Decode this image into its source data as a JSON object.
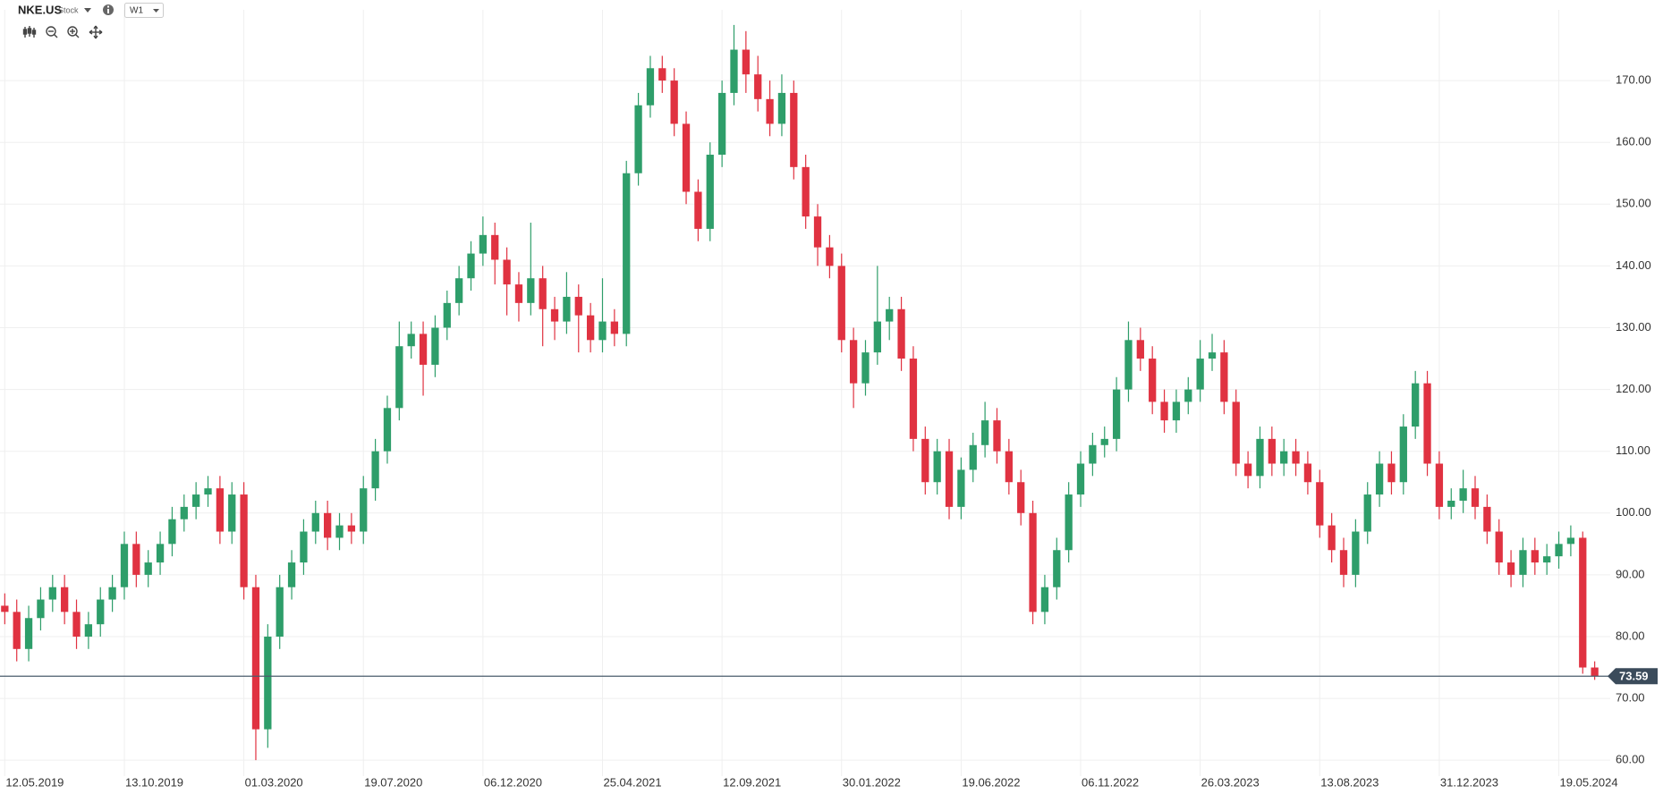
{
  "header": {
    "symbol": "NKE.US",
    "kind": "Stock",
    "interval": "W1"
  },
  "chart_data": {
    "type": "candlestick",
    "up_color": "#2e9e6a",
    "down_color": "#e03241",
    "grid": true,
    "xlim": [
      0.6,
      135.3
    ],
    "ylim": [
      58,
      180
    ],
    "xticks": [
      {
        "value": 1,
        "label": "12.05.2019"
      },
      {
        "value": 11,
        "label": "13.10.2019"
      },
      {
        "value": 21,
        "label": "01.03.2020"
      },
      {
        "value": 31,
        "label": "19.07.2020"
      },
      {
        "value": 41,
        "label": "06.12.2020"
      },
      {
        "value": 51,
        "label": "25.04.2021"
      },
      {
        "value": 61,
        "label": "12.09.2021"
      },
      {
        "value": 71,
        "label": "30.01.2022"
      },
      {
        "value": 81,
        "label": "19.06.2022"
      },
      {
        "value": 91,
        "label": "06.11.2022"
      },
      {
        "value": 101,
        "label": "26.03.2023"
      },
      {
        "value": 111,
        "label": "13.08.2023"
      },
      {
        "value": 121,
        "label": "31.12.2023"
      },
      {
        "value": 131,
        "label": "19.05.2024"
      }
    ],
    "yticks": [
      {
        "value": 60,
        "label": "60.00"
      },
      {
        "value": 70,
        "label": "70.00"
      },
      {
        "value": 80,
        "label": "80.00"
      },
      {
        "value": 90,
        "label": "90.00"
      },
      {
        "value": 100,
        "label": "100.00"
      },
      {
        "value": 110,
        "label": "110.00"
      },
      {
        "value": 120,
        "label": "120.00"
      },
      {
        "value": 130,
        "label": "130.00"
      },
      {
        "value": 140,
        "label": "140.00"
      },
      {
        "value": 150,
        "label": "150.00"
      },
      {
        "value": 160,
        "label": "160.00"
      },
      {
        "value": 170,
        "label": "170.00"
      }
    ],
    "last_price": 73.59,
    "open": [
      85,
      84,
      78,
      83,
      86,
      88,
      84,
      80,
      82,
      86,
      88,
      95,
      90,
      92,
      95,
      99,
      101,
      103,
      104,
      97,
      103,
      88,
      65,
      80,
      88,
      92,
      97,
      100,
      96,
      98,
      97,
      104,
      110,
      117,
      127,
      129,
      124,
      130,
      134,
      138,
      142,
      145,
      141,
      137,
      134,
      138,
      133,
      131,
      135,
      132,
      128,
      131,
      129,
      155,
      166,
      172,
      170,
      163,
      152,
      146,
      158,
      168,
      175,
      171,
      167,
      163,
      168,
      156,
      148,
      143,
      140,
      128,
      121,
      126,
      131,
      133,
      125,
      112,
      105,
      110,
      101,
      107,
      111,
      115,
      110,
      105,
      100,
      84,
      88,
      94,
      103,
      108,
      111,
      112,
      120,
      128,
      125,
      118,
      115,
      118,
      120,
      125,
      126,
      118,
      108,
      106,
      112,
      108,
      110,
      108,
      105,
      98,
      94,
      90,
      97,
      103,
      108,
      105,
      114,
      121,
      108,
      101,
      102,
      104,
      101,
      97,
      92,
      90,
      94,
      92,
      93,
      95,
      96,
      75
    ],
    "high": [
      87,
      86,
      85,
      88,
      90,
      90,
      86,
      84,
      88,
      90,
      97,
      97,
      94,
      97,
      101,
      103,
      105,
      106,
      106,
      105,
      105,
      90,
      82,
      90,
      94,
      99,
      102,
      102,
      100,
      100,
      106,
      112,
      119,
      131,
      131,
      131,
      132,
      136,
      140,
      144,
      148,
      147,
      143,
      139,
      147,
      140,
      135,
      139,
      137,
      134,
      138,
      133,
      157,
      168,
      174,
      174,
      172,
      165,
      154,
      160,
      170,
      179,
      178,
      174,
      170,
      171,
      170,
      158,
      150,
      145,
      142,
      130,
      128,
      140,
      135,
      135,
      127,
      114,
      112,
      112,
      109,
      113,
      118,
      117,
      112,
      107,
      102,
      90,
      96,
      105,
      110,
      113,
      114,
      122,
      131,
      130,
      127,
      120,
      120,
      122,
      128,
      129,
      128,
      120,
      110,
      114,
      114,
      112,
      112,
      110,
      107,
      100,
      96,
      99,
      105,
      110,
      110,
      116,
      123,
      123,
      110,
      104,
      107,
      106,
      103,
      99,
      94,
      96,
      96,
      95,
      97,
      98,
      97,
      76
    ],
    "low": [
      82,
      76,
      76,
      81,
      84,
      82,
      78,
      78,
      80,
      84,
      86,
      88,
      88,
      90,
      93,
      97,
      99,
      101,
      95,
      95,
      86,
      60,
      62,
      78,
      86,
      90,
      95,
      94,
      94,
      95,
      95,
      102,
      108,
      115,
      125,
      119,
      122,
      128,
      132,
      136,
      140,
      137,
      132,
      131,
      132,
      127,
      128,
      129,
      126,
      126,
      126,
      127,
      127,
      153,
      164,
      168,
      161,
      150,
      144,
      144,
      156,
      166,
      168,
      165,
      161,
      161,
      154,
      146,
      140,
      138,
      126,
      117,
      119,
      124,
      128,
      123,
      110,
      103,
      103,
      99,
      99,
      105,
      109,
      108,
      103,
      98,
      82,
      82,
      86,
      92,
      101,
      106,
      109,
      110,
      118,
      123,
      116,
      113,
      113,
      116,
      118,
      123,
      116,
      106,
      104,
      104,
      106,
      106,
      106,
      103,
      96,
      92,
      88,
      88,
      95,
      101,
      103,
      103,
      112,
      106,
      99,
      99,
      100,
      99,
      95,
      90,
      88,
      88,
      90,
      90,
      91,
      93,
      74,
      73
    ],
    "close": [
      84,
      78,
      83,
      86,
      88,
      84,
      80,
      82,
      86,
      88,
      95,
      90,
      92,
      95,
      99,
      101,
      103,
      104,
      97,
      103,
      88,
      65,
      80,
      88,
      92,
      97,
      100,
      96,
      98,
      97,
      104,
      110,
      117,
      127,
      129,
      124,
      130,
      134,
      138,
      142,
      145,
      141,
      137,
      134,
      138,
      133,
      131,
      135,
      132,
      128,
      131,
      129,
      155,
      166,
      172,
      170,
      163,
      152,
      146,
      158,
      168,
      175,
      171,
      167,
      163,
      168,
      156,
      148,
      143,
      140,
      128,
      121,
      126,
      131,
      133,
      125,
      112,
      105,
      110,
      101,
      107,
      111,
      115,
      110,
      105,
      100,
      84,
      88,
      94,
      103,
      108,
      111,
      112,
      120,
      128,
      125,
      118,
      115,
      118,
      120,
      125,
      126,
      118,
      108,
      106,
      112,
      108,
      110,
      108,
      105,
      98,
      94,
      90,
      97,
      103,
      108,
      105,
      114,
      121,
      108,
      101,
      102,
      104,
      101,
      97,
      92,
      90,
      94,
      92,
      93,
      95,
      96,
      75,
      73.59
    ]
  }
}
